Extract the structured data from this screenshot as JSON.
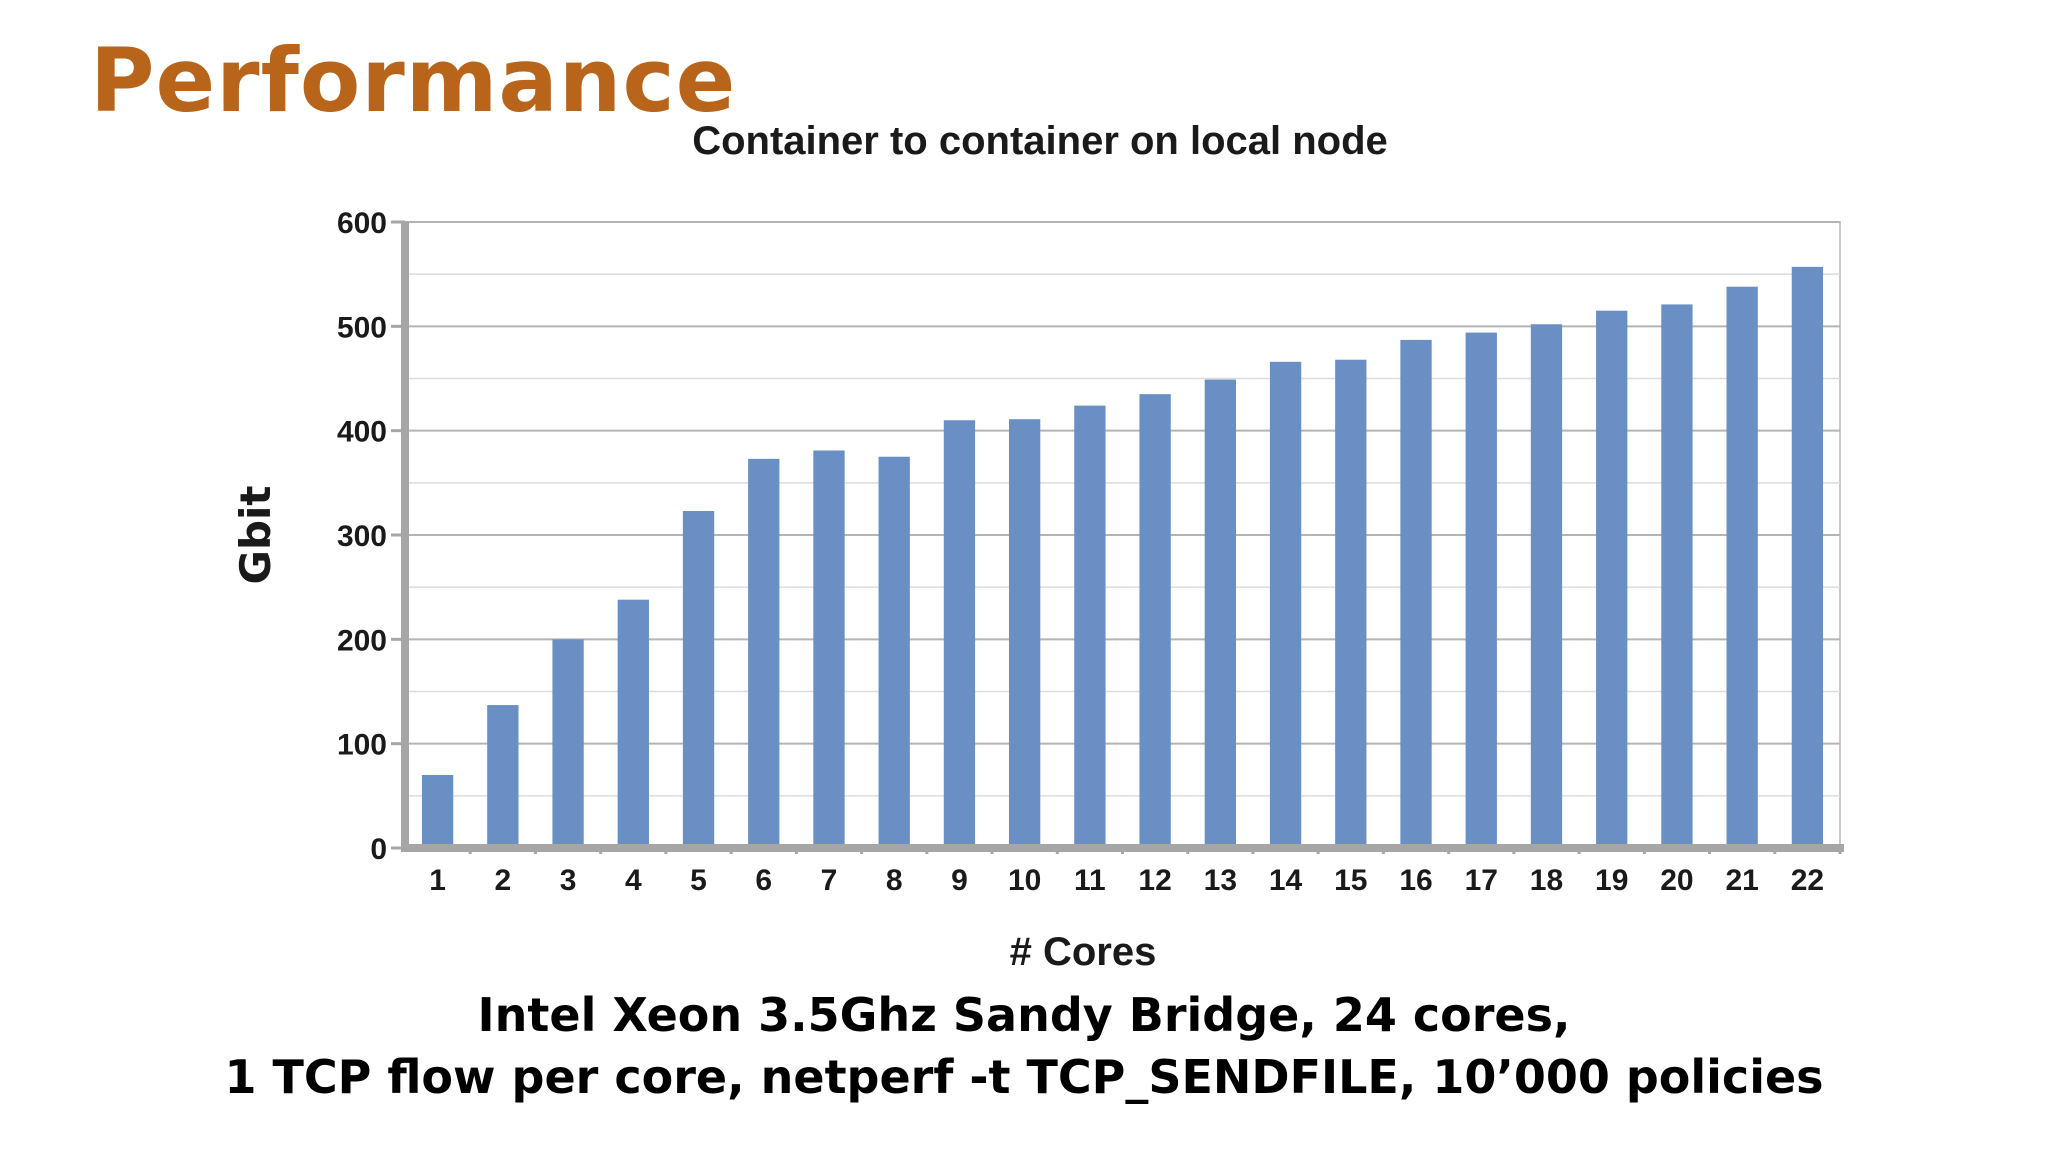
{
  "slide": {
    "title": "Performance",
    "caption_line1": "Intel Xeon 3.5Ghz Sandy Bridge, 24 cores,",
    "caption_line2": "1 TCP flow per core, netperf -t TCP_SENDFILE, 10’000 policies"
  },
  "colors": {
    "title": "#b8651b",
    "bar": "#6a8fc4",
    "grid": "#c8c8c8",
    "axis": "#a6a6a6"
  },
  "chart_data": {
    "type": "bar",
    "title": "Container to container on local node",
    "xlabel": "# Cores",
    "ylabel": "Gbit",
    "ylim": [
      0,
      600
    ],
    "yticks": [
      0,
      100,
      200,
      300,
      400,
      500,
      600
    ],
    "grid": true,
    "categories": [
      "1",
      "2",
      "3",
      "4",
      "5",
      "6",
      "7",
      "8",
      "9",
      "10",
      "11",
      "12",
      "13",
      "14",
      "15",
      "16",
      "17",
      "18",
      "19",
      "20",
      "21",
      "22"
    ],
    "values": [
      70,
      137,
      200,
      238,
      323,
      373,
      381,
      375,
      410,
      411,
      424,
      435,
      449,
      466,
      468,
      487,
      494,
      502,
      515,
      521,
      538,
      557
    ]
  }
}
